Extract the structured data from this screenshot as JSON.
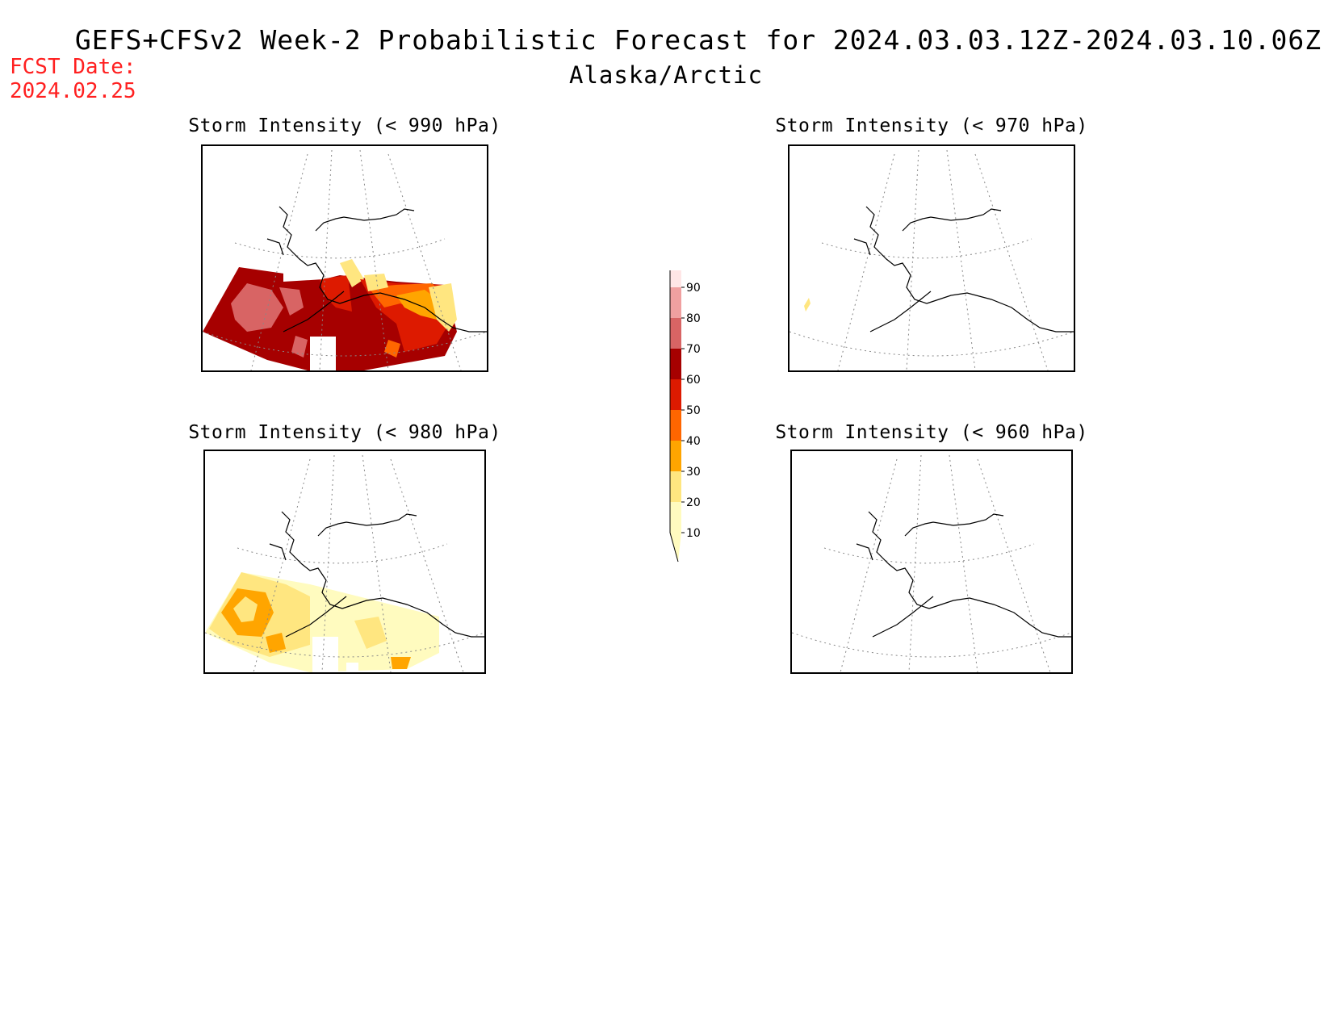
{
  "header": {
    "title": "GEFS+CFSv2 Week-2 Probabilistic Forecast for 2024.03.03.12Z-2024.03.10.06Z",
    "subtitle": "Alaska/Arctic",
    "fcst_label": "FCST Date:",
    "fcst_date": "2024.02.25"
  },
  "panels": {
    "p990": {
      "title": "Storm Intensity (< 990 hPa)",
      "max_probability": 80
    },
    "p970": {
      "title": "Storm Intensity (< 970 hPa)",
      "max_probability": 20
    },
    "p980": {
      "title": "Storm Intensity (< 980 hPa)",
      "max_probability": 40
    },
    "p960": {
      "title": "Storm Intensity (< 960 hPa)",
      "max_probability": 0
    }
  },
  "colorbar": {
    "ticks": [
      "10",
      "20",
      "30",
      "40",
      "50",
      "60",
      "70",
      "80",
      "90"
    ],
    "colors": [
      "#fffbbf",
      "#ffe680",
      "#ffa500",
      "#ff6600",
      "#dd1a00",
      "#a60000",
      "#d86464",
      "#f0a0a0",
      "#ffe6e6"
    ]
  }
}
